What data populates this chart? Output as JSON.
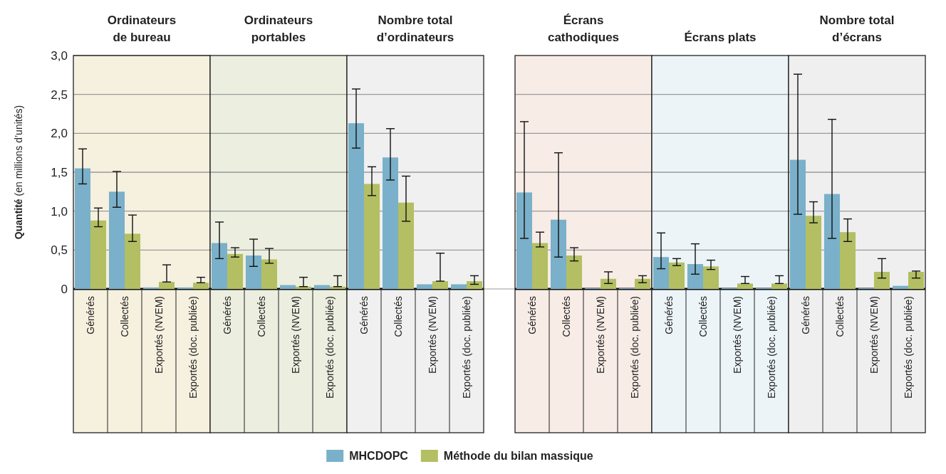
{
  "chart_data": [
    {
      "type": "bar",
      "title": "Ordinateurs\nde bureau",
      "ylabel": "Quantité (en millions d’unités)",
      "categories": [
        "Générés",
        "Collectés",
        "Exportés (NVEM)",
        "Exportés (doc. publiée)"
      ],
      "ylim": [
        0,
        3
      ],
      "yticks": [
        0,
        {
          "value": 0.5,
          "label": "0,5"
        },
        {
          "value": 1,
          "label": "1,0"
        },
        {
          "value": 1.5,
          "label": "1,5"
        },
        {
          "value": 2,
          "label": "2,0"
        },
        {
          "value": 2.5,
          "label": "2,5"
        },
        {
          "value": 3,
          "label": "3,0"
        }
      ],
      "grid": "y",
      "legend": "bottom",
      "bands": [
        {
          "axis": "y",
          "from": 0,
          "to": 3,
          "color": "#f6f0df"
        }
      ],
      "series": [
        {
          "name": "MHCDOPC",
          "color": "#7ab0c9",
          "values": [
            1.55,
            1.25,
            0.02,
            0.02
          ],
          "errors": [
            [
              1.35,
              1.8
            ],
            [
              1.05,
              1.51
            ],
            null,
            null
          ]
        },
        {
          "name": "Méthode du bilan massique",
          "color": "#b3bf62",
          "values": [
            0.88,
            0.71,
            0.09,
            0.08
          ],
          "errors": [
            [
              0.8,
              1.04
            ],
            [
              0.61,
              0.95
            ],
            [
              0.09,
              0.31
            ],
            [
              0.08,
              0.15
            ]
          ]
        }
      ]
    },
    {
      "type": "bar",
      "title": "Ordinateurs\nportables",
      "categories": [
        "Générés",
        "Collectés",
        "Exportés (NVEM)",
        "Exportés (doc. publiée)"
      ],
      "ylim": [
        0,
        3
      ],
      "yticks": [
        {
          "value": 0.5,
          "label": null
        },
        {
          "value": 1,
          "label": null
        },
        {
          "value": 1.5,
          "label": null
        },
        {
          "value": 2,
          "label": null
        },
        {
          "value": 2.5,
          "label": null
        }
      ],
      "tick_labels": "x",
      "grid": "y",
      "bands": [
        {
          "axis": "y",
          "from": 0,
          "to": 3,
          "color": "#eceee0"
        }
      ],
      "series": [
        {
          "color": "#7ab0c9",
          "values": [
            0.59,
            0.43,
            0.05,
            0.05
          ],
          "errors": [
            [
              0.39,
              0.86
            ],
            [
              0.29,
              0.64
            ],
            null,
            null
          ]
        },
        {
          "color": "#b3bf62",
          "values": [
            0.45,
            0.38,
            0.03,
            0.03
          ],
          "errors": [
            [
              0.41,
              0.53
            ],
            [
              0.33,
              0.52
            ],
            [
              0.03,
              0.15
            ],
            [
              0.03,
              0.17
            ]
          ]
        }
      ]
    },
    {
      "type": "bar",
      "title": "Nombre total\nd’ordinateurs",
      "categories": [
        "Générés",
        "Collectés",
        "Exportés (NVEM)",
        "Exportés (doc. publiée)"
      ],
      "ylim": [
        0,
        3
      ],
      "yticks": [
        {
          "value": 0.5,
          "label": null
        },
        {
          "value": 1,
          "label": null
        },
        {
          "value": 1.5,
          "label": null
        },
        {
          "value": 2,
          "label": null
        },
        {
          "value": 2.5,
          "label": null
        }
      ],
      "tick_labels": "x",
      "grid": "y",
      "bands": [
        {
          "axis": "y",
          "from": 0,
          "to": 3,
          "color": "#f0f0f0"
        }
      ],
      "series": [
        {
          "color": "#7ab0c9",
          "values": [
            2.13,
            1.69,
            0.06,
            0.06
          ],
          "errors": [
            [
              1.81,
              2.57
            ],
            [
              1.4,
              2.06
            ],
            null,
            null
          ]
        },
        {
          "color": "#b3bf62",
          "values": [
            1.35,
            1.11,
            0.1,
            0.1
          ],
          "errors": [
            [
              1.2,
              1.57
            ],
            [
              0.87,
              1.45
            ],
            [
              0.1,
              0.46
            ],
            [
              0.06,
              0.17
            ]
          ]
        }
      ]
    },
    {
      "type": "bar",
      "title": "Écrans\ncathodiques",
      "categories": [
        "Générés",
        "Collectés",
        "Exportés (NVEM)",
        "Exportés (doc. publiée)"
      ],
      "ylim": [
        0,
        3
      ],
      "yticks": [
        {
          "value": 0.5,
          "label": null
        },
        {
          "value": 1,
          "label": null
        },
        {
          "value": 1.5,
          "label": null
        },
        {
          "value": 2,
          "label": null
        },
        {
          "value": 2.5,
          "label": null
        }
      ],
      "tick_labels": "x",
      "grid": "y",
      "bands": [
        {
          "axis": "y",
          "from": 0,
          "to": 3,
          "color": "#f7ece6"
        }
      ],
      "series": [
        {
          "color": "#7ab0c9",
          "values": [
            1.24,
            0.89,
            0.01,
            0.01
          ],
          "errors": [
            [
              0.65,
              2.15
            ],
            [
              0.41,
              1.75
            ],
            null,
            null
          ]
        },
        {
          "color": "#b3bf62",
          "values": [
            0.59,
            0.43,
            0.13,
            0.13
          ],
          "errors": [
            [
              0.54,
              0.73
            ],
            [
              0.36,
              0.53
            ],
            [
              0.07,
              0.22
            ],
            [
              0.08,
              0.17
            ]
          ]
        }
      ]
    },
    {
      "type": "bar",
      "title": "Écrans plats",
      "categories": [
        "Générés",
        "Collectés",
        "Exportés (NVEM)",
        "Exportés (doc. publiée)"
      ],
      "ylim": [
        0,
        3
      ],
      "yticks": [
        {
          "value": 0.5,
          "label": null
        },
        {
          "value": 1,
          "label": null
        },
        {
          "value": 1.5,
          "label": null
        },
        {
          "value": 2,
          "label": null
        },
        {
          "value": 2.5,
          "label": null
        }
      ],
      "tick_labels": "x",
      "grid": "y",
      "bands": [
        {
          "axis": "y",
          "from": 0,
          "to": 3,
          "color": "#ecf4f8"
        }
      ],
      "series": [
        {
          "color": "#7ab0c9",
          "values": [
            0.41,
            0.32,
            0.01,
            0.01
          ],
          "errors": [
            [
              0.26,
              0.72
            ],
            [
              0.19,
              0.58
            ],
            null,
            null
          ]
        },
        {
          "color": "#b3bf62",
          "values": [
            0.34,
            0.29,
            0.07,
            0.07
          ],
          "errors": [
            [
              0.3,
              0.39
            ],
            [
              0.25,
              0.37
            ],
            [
              0.07,
              0.16
            ],
            [
              0.07,
              0.17
            ]
          ]
        }
      ]
    },
    {
      "type": "bar",
      "title": "Nombre total\nd’écrans",
      "categories": [
        "Générés",
        "Collectés",
        "Exportés (NVEM)",
        "Exportés (doc. publiée)"
      ],
      "ylim": [
        0,
        3
      ],
      "yticks": [
        {
          "value": 0.5,
          "label": null
        },
        {
          "value": 1,
          "label": null
        },
        {
          "value": 1.5,
          "label": null
        },
        {
          "value": 2,
          "label": null
        },
        {
          "value": 2.5,
          "label": null
        }
      ],
      "tick_labels": "x",
      "grid": "y",
      "bands": [
        {
          "axis": "y",
          "from": 0,
          "to": 3,
          "color": "#efefef"
        }
      ],
      "series": [
        {
          "color": "#7ab0c9",
          "values": [
            1.66,
            1.22,
            0.01,
            0.04
          ],
          "errors": [
            [
              0.96,
              2.76
            ],
            [
              0.65,
              2.18
            ],
            null,
            null
          ]
        },
        {
          "color": "#b3bf62",
          "values": [
            0.94,
            0.73,
            0.22,
            0.22
          ],
          "errors": [
            [
              0.85,
              1.12
            ],
            [
              0.61,
              0.9
            ],
            [
              0.14,
              0.39
            ],
            [
              0.14,
              0.23
            ]
          ]
        }
      ]
    }
  ]
}
